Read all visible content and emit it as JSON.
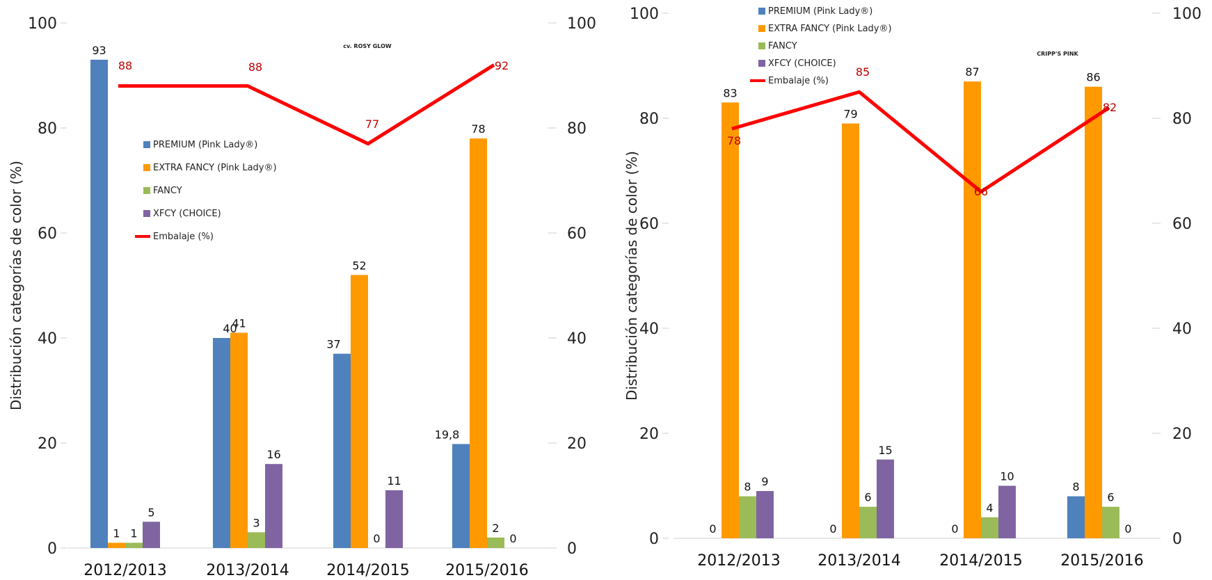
{
  "chart_data": [
    {
      "type": "bar",
      "annotation": "cv. ROSY GLOW",
      "ylabel": "Distribución categorías de color (%)",
      "ylim": [
        0,
        100
      ],
      "y_ticks": [
        "0",
        "20",
        "40",
        "60",
        "80",
        "100"
      ],
      "y2lim": [
        0,
        100
      ],
      "y2_ticks": [
        "0",
        "20",
        "40",
        "60",
        "80",
        "100"
      ],
      "categories": [
        "2012/2013",
        "2013/2014",
        "2014/2015",
        "2015/2016"
      ],
      "series": [
        {
          "name": "PREMIUM (Pink Lady®)",
          "color": "#4f81bd",
          "values": [
            93,
            40,
            37,
            19.8
          ],
          "labels": [
            "93",
            "40",
            "37",
            "19,8"
          ]
        },
        {
          "name": "EXTRA FANCY (Pink Lady®)",
          "color": "#ff9900",
          "values": [
            1,
            41,
            52,
            78
          ],
          "labels": [
            "1",
            "41",
            "52",
            "78"
          ]
        },
        {
          "name": "FANCY",
          "color": "#9bbb59",
          "values": [
            1,
            3,
            0,
            2
          ],
          "labels": [
            "1",
            "3",
            "0",
            "2"
          ]
        },
        {
          "name": "XFCY (CHOICE)",
          "color": "#8064a2",
          "values": [
            5,
            16,
            11,
            0
          ],
          "labels": [
            "5",
            "16",
            "11",
            "0"
          ]
        }
      ],
      "line": {
        "name": "Embalaje (%)",
        "color": "#ff0000",
        "axis": "secondary",
        "values": [
          88,
          88,
          77,
          92
        ],
        "labels": [
          "88",
          "88",
          "77",
          "92"
        ]
      },
      "legend_position": "center-left"
    },
    {
      "type": "bar",
      "annotation": "CRIPP'S PINK",
      "ylabel": "Distribución categorías de color (%)",
      "ylim": [
        0,
        100
      ],
      "y_ticks": [
        "0",
        "20",
        "40",
        "60",
        "80",
        "100"
      ],
      "y2lim": [
        0,
        100
      ],
      "y2_ticks": [
        "0",
        "20",
        "40",
        "60",
        "80",
        "100"
      ],
      "categories": [
        "2012/2013",
        "2013/2014",
        "2014/2015",
        "2015/2016"
      ],
      "series": [
        {
          "name": "PREMIUM (Pink Lady®)",
          "color": "#4f81bd",
          "values": [
            0,
            0,
            0,
            8
          ],
          "labels": [
            "0",
            "0",
            "0",
            "8"
          ]
        },
        {
          "name": "EXTRA FANCY (Pink Lady®)",
          "color": "#ff9900",
          "values": [
            83,
            79,
            87,
            86
          ],
          "labels": [
            "83",
            "79",
            "87",
            "86"
          ]
        },
        {
          "name": "FANCY",
          "color": "#9bbb59",
          "values": [
            8,
            6,
            4,
            6
          ],
          "labels": [
            "8",
            "6",
            "4",
            "6"
          ]
        },
        {
          "name": "XFCY (CHOICE)",
          "color": "#8064a2",
          "values": [
            9,
            15,
            10,
            0
          ],
          "labels": [
            "9",
            "15",
            "10",
            "0"
          ]
        }
      ],
      "line": {
        "name": "Embalaje (%)",
        "color": "#ff0000",
        "axis": "secondary",
        "values": [
          78,
          85,
          66,
          82
        ],
        "labels": [
          "78",
          "85",
          "66",
          "82"
        ]
      },
      "legend_position": "top-left"
    }
  ]
}
